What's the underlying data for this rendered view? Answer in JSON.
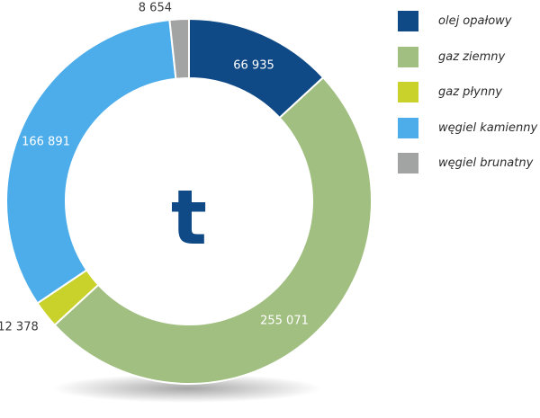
{
  "chart_data": {
    "type": "pie",
    "center_label": "t",
    "slices": [
      {
        "name": "olej opałowy",
        "value": 66935,
        "label": "66 935",
        "color": "#0f4a87"
      },
      {
        "name": "gaz ziemny",
        "value": 255071,
        "label": "255 071",
        "color": "#a1bf81"
      },
      {
        "name": "gaz płynny",
        "value": 12378,
        "label": "12 378",
        "color": "#c8d22a"
      },
      {
        "name": "węgiel kamienny",
        "value": 166891,
        "label": "166 891",
        "color": "#4dadea"
      },
      {
        "name": "węgiel brunatny",
        "value": 8654,
        "label": "8 654",
        "color": "#a2a3a3"
      }
    ],
    "legend": {
      "position": "top-right",
      "entries": [
        "olej opałowy",
        "gaz ziemny",
        "gaz płynny",
        "węgiel kamienny",
        "węgiel brunatny"
      ]
    }
  }
}
